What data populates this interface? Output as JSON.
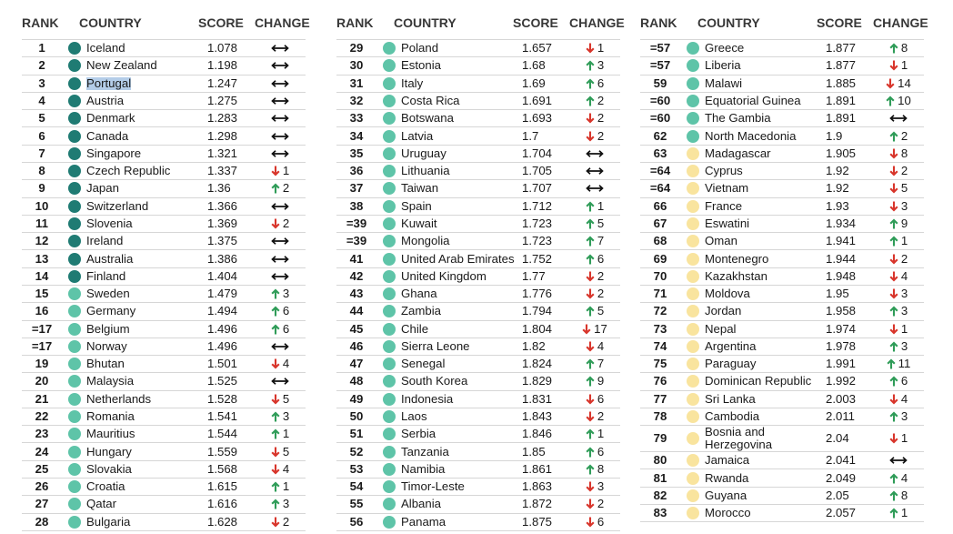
{
  "headers": {
    "rank": "RANK",
    "country": "COUNTRY",
    "score": "SCORE",
    "change": "CHANGE"
  },
  "colors": {
    "increase": "#2f9c58",
    "decrease": "#d8352b",
    "no_change": "#111111",
    "selection": "#b4cde8"
  },
  "tables": [
    {
      "rows": [
        {
          "rank": "1",
          "country": "Iceland",
          "score": "1.078",
          "icon": "no-change",
          "dot": "#1f7b73"
        },
        {
          "rank": "2",
          "country": "New Zealand",
          "score": "1.198",
          "icon": "no-change",
          "dot": "#1f7b73"
        },
        {
          "rank": "3",
          "country": "Portugal",
          "score": "1.247",
          "icon": "no-change",
          "dot": "#1f7b73",
          "selected": true
        },
        {
          "rank": "4",
          "country": "Austria",
          "score": "1.275",
          "icon": "no-change",
          "dot": "#1f7b73"
        },
        {
          "rank": "5",
          "country": "Denmark",
          "score": "1.283",
          "icon": "no-change",
          "dot": "#1f7b73"
        },
        {
          "rank": "6",
          "country": "Canada",
          "score": "1.298",
          "icon": "no-change",
          "dot": "#1f7b73"
        },
        {
          "rank": "7",
          "country": "Singapore",
          "score": "1.321",
          "icon": "no-change",
          "dot": "#1f7b73"
        },
        {
          "rank": "8",
          "country": "Czech Republic",
          "score": "1.337",
          "icon": "arrow-down",
          "change": "1",
          "dot": "#1f7b73"
        },
        {
          "rank": "9",
          "country": "Japan",
          "score": "1.36",
          "icon": "arrow-up",
          "change": "2",
          "dot": "#1f7b73"
        },
        {
          "rank": "10",
          "country": "Switzerland",
          "score": "1.366",
          "icon": "no-change",
          "dot": "#1f7b73"
        },
        {
          "rank": "11",
          "country": "Slovenia",
          "score": "1.369",
          "icon": "arrow-down",
          "change": "2",
          "dot": "#1f7b73"
        },
        {
          "rank": "12",
          "country": "Ireland",
          "score": "1.375",
          "icon": "no-change",
          "dot": "#1f7b73"
        },
        {
          "rank": "13",
          "country": "Australia",
          "score": "1.386",
          "icon": "no-change",
          "dot": "#1f7b73"
        },
        {
          "rank": "14",
          "country": "Finland",
          "score": "1.404",
          "icon": "no-change",
          "dot": "#1f7b73"
        },
        {
          "rank": "15",
          "country": "Sweden",
          "score": "1.479",
          "icon": "arrow-up",
          "change": "3",
          "dot": "#5ec4a8"
        },
        {
          "rank": "16",
          "country": "Germany",
          "score": "1.494",
          "icon": "arrow-up",
          "change": "6",
          "dot": "#5ec4a8"
        },
        {
          "rank": "=17",
          "country": "Belgium",
          "score": "1.496",
          "icon": "arrow-up",
          "change": "6",
          "dot": "#5ec4a8"
        },
        {
          "rank": "=17",
          "country": "Norway",
          "score": "1.496",
          "icon": "no-change",
          "dot": "#5ec4a8"
        },
        {
          "rank": "19",
          "country": "Bhutan",
          "score": "1.501",
          "icon": "arrow-down",
          "change": "4",
          "dot": "#5ec4a8"
        },
        {
          "rank": "20",
          "country": "Malaysia",
          "score": "1.525",
          "icon": "no-change",
          "dot": "#5ec4a8"
        },
        {
          "rank": "21",
          "country": "Netherlands",
          "score": "1.528",
          "icon": "arrow-down",
          "change": "5",
          "dot": "#5ec4a8"
        },
        {
          "rank": "22",
          "country": "Romania",
          "score": "1.541",
          "icon": "arrow-up",
          "change": "3",
          "dot": "#5ec4a8"
        },
        {
          "rank": "23",
          "country": "Mauritius",
          "score": "1.544",
          "icon": "arrow-up",
          "change": "1",
          "dot": "#5ec4a8"
        },
        {
          "rank": "24",
          "country": "Hungary",
          "score": "1.559",
          "icon": "arrow-down",
          "change": "5",
          "dot": "#5ec4a8"
        },
        {
          "rank": "25",
          "country": "Slovakia",
          "score": "1.568",
          "icon": "arrow-down",
          "change": "4",
          "dot": "#5ec4a8"
        },
        {
          "rank": "26",
          "country": "Croatia",
          "score": "1.615",
          "icon": "arrow-up",
          "change": "1",
          "dot": "#5ec4a8"
        },
        {
          "rank": "27",
          "country": "Qatar",
          "score": "1.616",
          "icon": "arrow-up",
          "change": "3",
          "dot": "#5ec4a8"
        },
        {
          "rank": "28",
          "country": "Bulgaria",
          "score": "1.628",
          "icon": "arrow-down",
          "change": "2",
          "dot": "#5ec4a8"
        }
      ]
    },
    {
      "rows": [
        {
          "rank": "29",
          "country": "Poland",
          "score": "1.657",
          "icon": "arrow-down",
          "change": "1",
          "dot": "#5ec4a8"
        },
        {
          "rank": "30",
          "country": "Estonia",
          "score": "1.68",
          "icon": "arrow-up",
          "change": "3",
          "dot": "#5ec4a8"
        },
        {
          "rank": "31",
          "country": "Italy",
          "score": "1.69",
          "icon": "arrow-up",
          "change": "6",
          "dot": "#5ec4a8"
        },
        {
          "rank": "32",
          "country": "Costa Rica",
          "score": "1.691",
          "icon": "arrow-up",
          "change": "2",
          "dot": "#5ec4a8"
        },
        {
          "rank": "33",
          "country": "Botswana",
          "score": "1.693",
          "icon": "arrow-down",
          "change": "2",
          "dot": "#5ec4a8"
        },
        {
          "rank": "34",
          "country": "Latvia",
          "score": "1.7",
          "icon": "arrow-down",
          "change": "2",
          "dot": "#5ec4a8"
        },
        {
          "rank": "35",
          "country": "Uruguay",
          "score": "1.704",
          "icon": "no-change",
          "dot": "#5ec4a8"
        },
        {
          "rank": "36",
          "country": "Lithuania",
          "score": "1.705",
          "icon": "no-change",
          "dot": "#5ec4a8"
        },
        {
          "rank": "37",
          "country": "Taiwan",
          "score": "1.707",
          "icon": "no-change",
          "dot": "#5ec4a8"
        },
        {
          "rank": "38",
          "country": "Spain",
          "score": "1.712",
          "icon": "arrow-up",
          "change": "1",
          "dot": "#5ec4a8"
        },
        {
          "rank": "=39",
          "country": "Kuwait",
          "score": "1.723",
          "icon": "arrow-up",
          "change": "5",
          "dot": "#5ec4a8"
        },
        {
          "rank": "=39",
          "country": "Mongolia",
          "score": "1.723",
          "icon": "arrow-up",
          "change": "7",
          "dot": "#5ec4a8"
        },
        {
          "rank": "41",
          "country": "United Arab Emirates",
          "score": "1.752",
          "icon": "arrow-up",
          "change": "6",
          "dot": "#5ec4a8"
        },
        {
          "rank": "42",
          "country": "United Kingdom",
          "score": "1.77",
          "icon": "arrow-down",
          "change": "2",
          "dot": "#5ec4a8"
        },
        {
          "rank": "43",
          "country": "Ghana",
          "score": "1.776",
          "icon": "arrow-down",
          "change": "2",
          "dot": "#5ec4a8"
        },
        {
          "rank": "44",
          "country": "Zambia",
          "score": "1.794",
          "icon": "arrow-up",
          "change": "5",
          "dot": "#5ec4a8"
        },
        {
          "rank": "45",
          "country": "Chile",
          "score": "1.804",
          "icon": "arrow-down",
          "change": "17",
          "dot": "#5ec4a8"
        },
        {
          "rank": "46",
          "country": "Sierra Leone",
          "score": "1.82",
          "icon": "arrow-down",
          "change": "4",
          "dot": "#5ec4a8"
        },
        {
          "rank": "47",
          "country": "Senegal",
          "score": "1.824",
          "icon": "arrow-up",
          "change": "7",
          "dot": "#5ec4a8"
        },
        {
          "rank": "48",
          "country": "South Korea",
          "score": "1.829",
          "icon": "arrow-up",
          "change": "9",
          "dot": "#5ec4a8"
        },
        {
          "rank": "49",
          "country": "Indonesia",
          "score": "1.831",
          "icon": "arrow-down",
          "change": "6",
          "dot": "#5ec4a8"
        },
        {
          "rank": "50",
          "country": "Laos",
          "score": "1.843",
          "icon": "arrow-down",
          "change": "2",
          "dot": "#5ec4a8"
        },
        {
          "rank": "51",
          "country": "Serbia",
          "score": "1.846",
          "icon": "arrow-up",
          "change": "1",
          "dot": "#5ec4a8"
        },
        {
          "rank": "52",
          "country": "Tanzania",
          "score": "1.85",
          "icon": "arrow-up",
          "change": "6",
          "dot": "#5ec4a8"
        },
        {
          "rank": "53",
          "country": "Namibia",
          "score": "1.861",
          "icon": "arrow-up",
          "change": "8",
          "dot": "#5ec4a8"
        },
        {
          "rank": "54",
          "country": "Timor-Leste",
          "score": "1.863",
          "icon": "arrow-down",
          "change": "3",
          "dot": "#5ec4a8"
        },
        {
          "rank": "55",
          "country": "Albania",
          "score": "1.872",
          "icon": "arrow-down",
          "change": "2",
          "dot": "#5ec4a8"
        },
        {
          "rank": "56",
          "country": "Panama",
          "score": "1.875",
          "icon": "arrow-down",
          "change": "6",
          "dot": "#5ec4a8"
        }
      ]
    },
    {
      "rows": [
        {
          "rank": "=57",
          "country": "Greece",
          "score": "1.877",
          "icon": "arrow-up",
          "change": "8",
          "dot": "#5ec4a8"
        },
        {
          "rank": "=57",
          "country": "Liberia",
          "score": "1.877",
          "icon": "arrow-down",
          "change": "1",
          "dot": "#5ec4a8"
        },
        {
          "rank": "59",
          "country": "Malawi",
          "score": "1.885",
          "icon": "arrow-down",
          "change": "14",
          "dot": "#5ec4a8"
        },
        {
          "rank": "=60",
          "country": "Equatorial Guinea",
          "score": "1.891",
          "icon": "arrow-up",
          "change": "10",
          "dot": "#5ec4a8"
        },
        {
          "rank": "=60",
          "country": "The Gambia",
          "score": "1.891",
          "icon": "no-change",
          "dot": "#5ec4a8"
        },
        {
          "rank": "62",
          "country": "North Macedonia",
          "score": "1.9",
          "icon": "arrow-up",
          "change": "2",
          "dot": "#5ec4a8"
        },
        {
          "rank": "63",
          "country": "Madagascar",
          "score": "1.905",
          "icon": "arrow-down",
          "change": "8",
          "dot": "#f9e49e"
        },
        {
          "rank": "=64",
          "country": "Cyprus",
          "score": "1.92",
          "icon": "arrow-down",
          "change": "2",
          "dot": "#f9e49e"
        },
        {
          "rank": "=64",
          "country": "Vietnam",
          "score": "1.92",
          "icon": "arrow-down",
          "change": "5",
          "dot": "#f9e49e"
        },
        {
          "rank": "66",
          "country": "France",
          "score": "1.93",
          "icon": "arrow-down",
          "change": "3",
          "dot": "#f9e49e"
        },
        {
          "rank": "67",
          "country": "Eswatini",
          "score": "1.934",
          "icon": "arrow-up",
          "change": "9",
          "dot": "#f9e49e"
        },
        {
          "rank": "68",
          "country": "Oman",
          "score": "1.941",
          "icon": "arrow-up",
          "change": "1",
          "dot": "#f9e49e"
        },
        {
          "rank": "69",
          "country": "Montenegro",
          "score": "1.944",
          "icon": "arrow-down",
          "change": "2",
          "dot": "#f9e49e"
        },
        {
          "rank": "70",
          "country": "Kazakhstan",
          "score": "1.948",
          "icon": "arrow-down",
          "change": "4",
          "dot": "#f9e49e"
        },
        {
          "rank": "71",
          "country": "Moldova",
          "score": "1.95",
          "icon": "arrow-down",
          "change": "3",
          "dot": "#f9e49e"
        },
        {
          "rank": "72",
          "country": "Jordan",
          "score": "1.958",
          "icon": "arrow-up",
          "change": "3",
          "dot": "#f9e49e"
        },
        {
          "rank": "73",
          "country": "Nepal",
          "score": "1.974",
          "icon": "arrow-down",
          "change": "1",
          "dot": "#f9e49e"
        },
        {
          "rank": "74",
          "country": "Argentina",
          "score": "1.978",
          "icon": "arrow-up",
          "change": "3",
          "dot": "#f9e49e"
        },
        {
          "rank": "75",
          "country": "Paraguay",
          "score": "1.991",
          "icon": "arrow-up",
          "change": "11",
          "dot": "#f9e49e"
        },
        {
          "rank": "76",
          "country": "Dominican Republic",
          "score": "1.992",
          "icon": "arrow-up",
          "change": "6",
          "dot": "#f9e49e"
        },
        {
          "rank": "77",
          "country": "Sri Lanka",
          "score": "2.003",
          "icon": "arrow-down",
          "change": "4",
          "dot": "#f9e49e"
        },
        {
          "rank": "78",
          "country": "Cambodia",
          "score": "2.011",
          "icon": "arrow-up",
          "change": "3",
          "dot": "#f9e49e"
        },
        {
          "rank": "79",
          "country": "Bosnia and Herzegovina",
          "score": "2.04",
          "icon": "arrow-down",
          "change": "1",
          "dot": "#f9e49e"
        },
        {
          "rank": "80",
          "country": "Jamaica",
          "score": "2.041",
          "icon": "no-change",
          "dot": "#f9e49e"
        },
        {
          "rank": "81",
          "country": "Rwanda",
          "score": "2.049",
          "icon": "arrow-up",
          "change": "4",
          "dot": "#f9e49e"
        },
        {
          "rank": "82",
          "country": "Guyana",
          "score": "2.05",
          "icon": "arrow-up",
          "change": "8",
          "dot": "#f9e49e"
        },
        {
          "rank": "83",
          "country": "Morocco",
          "score": "2.057",
          "icon": "arrow-up",
          "change": "1",
          "dot": "#f9e49e"
        }
      ]
    }
  ]
}
